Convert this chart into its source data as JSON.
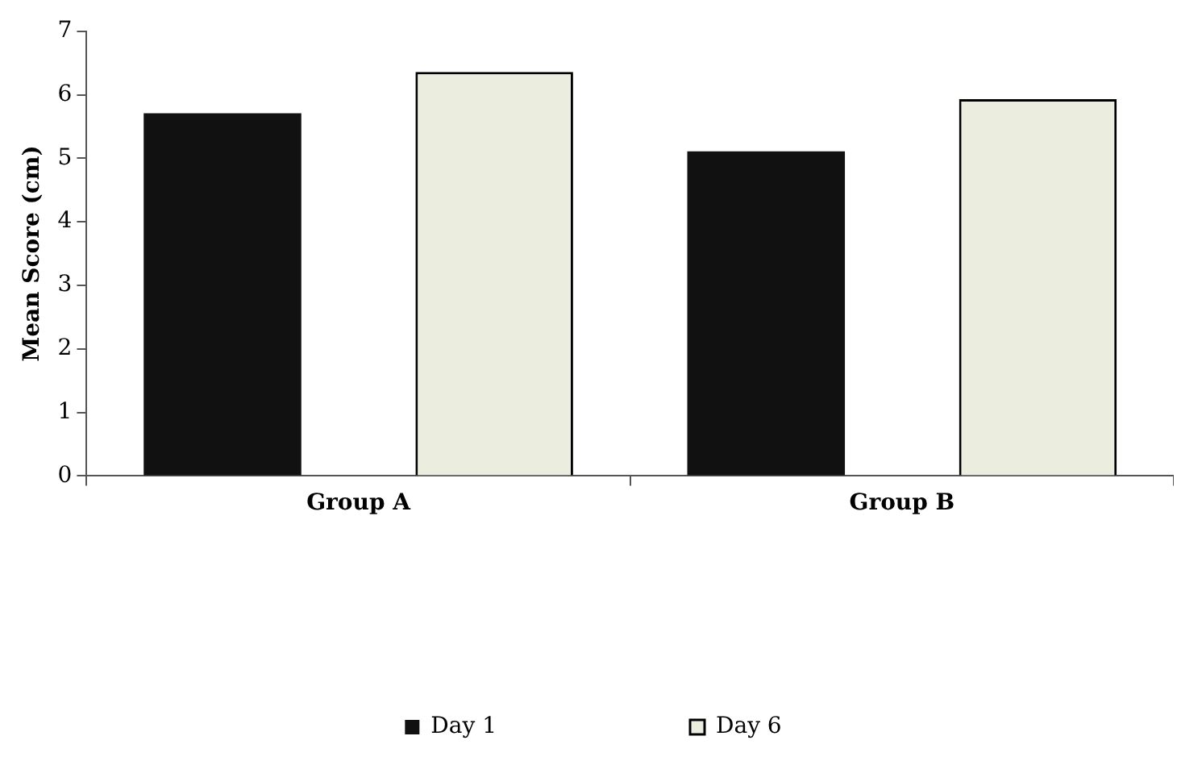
{
  "chart_data": {
    "type": "bar",
    "ylabel": "Mean Score (cm)",
    "categories": [
      "Group A",
      "Group B"
    ],
    "series": [
      {
        "name": "Day 1",
        "color": "#111111",
        "values": [
          5.71,
          5.11
        ]
      },
      {
        "name": "Day 6",
        "color": "#ebeedf",
        "values": [
          6.36,
          5.93
        ]
      }
    ],
    "ylim": [
      0,
      7
    ],
    "yticks": [
      0,
      1,
      2,
      3,
      4,
      5,
      6,
      7
    ],
    "grid": false,
    "legend": "bottom"
  }
}
